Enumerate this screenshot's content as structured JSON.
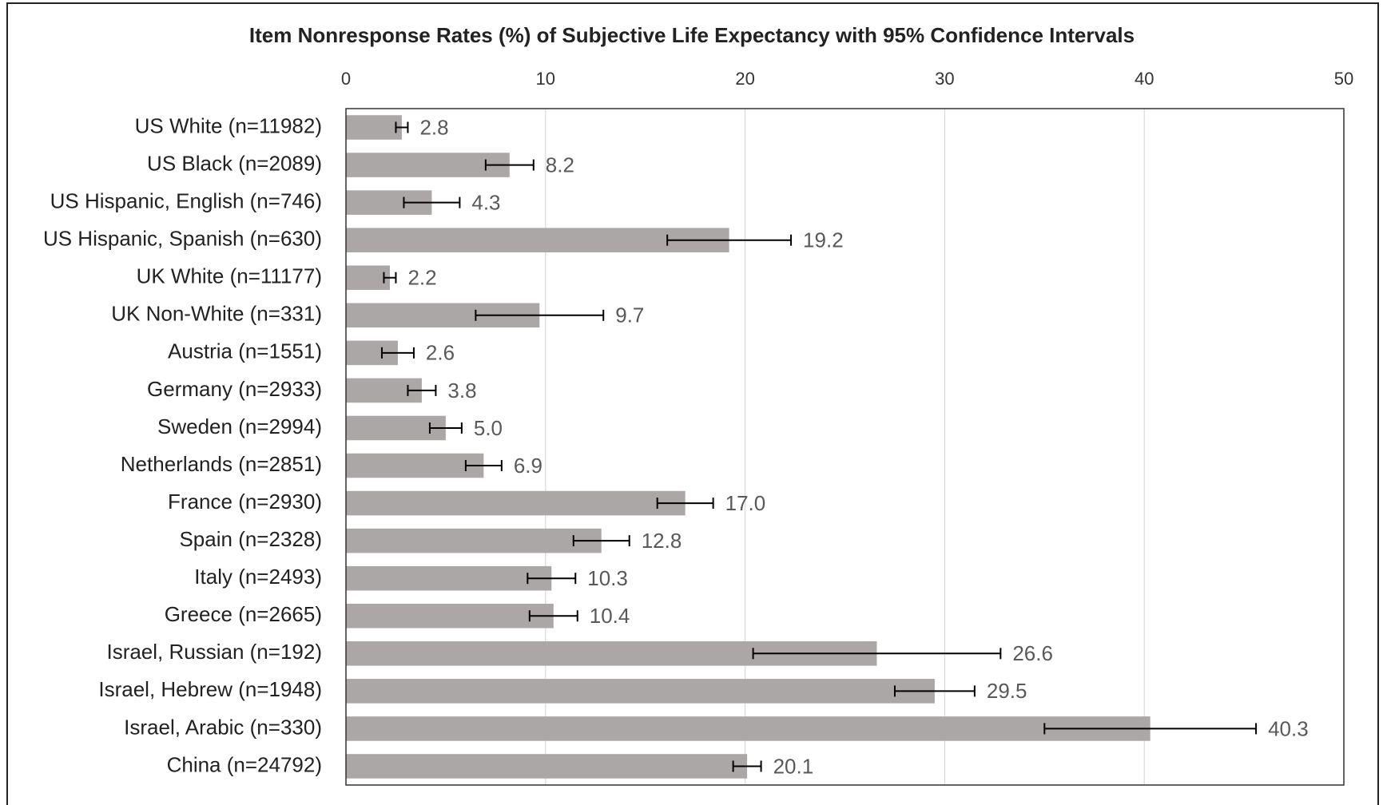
{
  "chart_data": {
    "type": "bar",
    "orientation": "horizontal",
    "title": "Item Nonresponse Rates (%) of Subjective Life Expectancy with 95% Confidence Intervals",
    "categories": [
      "US White (n=11982)",
      "US Black (n=2089)",
      "US Hispanic, English (n=746)",
      "US Hispanic, Spanish (n=630)",
      "UK White (n=11177)",
      "UK Non-White (n=331)",
      "Austria (n=1551)",
      "Germany (n=2933)",
      "Sweden (n=2994)",
      "Netherlands (n=2851)",
      "France (n=2930)",
      "Spain (n=2328)",
      "Italy (n=2493)",
      "Greece (n=2665)",
      "Israel, Russian (n=192)",
      "Israel, Hebrew (n=1948)",
      "Israel, Arabic (n=330)",
      "China (n=24792)"
    ],
    "values": [
      2.8,
      8.2,
      4.3,
      19.2,
      2.2,
      9.7,
      2.6,
      3.8,
      5.0,
      6.9,
      17.0,
      12.8,
      10.3,
      10.4,
      26.6,
      29.5,
      40.3,
      20.1
    ],
    "value_labels": [
      "2.8",
      "8.2",
      "4.3",
      "19.2",
      "2.2",
      "9.7",
      "2.6",
      "3.8",
      "5.0",
      "6.9",
      "17.0",
      "12.8",
      "10.3",
      "10.4",
      "26.6",
      "29.5",
      "40.3",
      "20.1"
    ],
    "errors": [
      0.3,
      1.2,
      1.4,
      3.1,
      0.3,
      3.2,
      0.8,
      0.7,
      0.8,
      0.9,
      1.4,
      1.4,
      1.2,
      1.2,
      6.2,
      2.0,
      5.3,
      0.7
    ],
    "color": "#aba7a7",
    "xlim": [
      0,
      50
    ],
    "xticks": [
      0,
      10,
      20,
      30,
      40,
      50
    ],
    "grid": true
  }
}
